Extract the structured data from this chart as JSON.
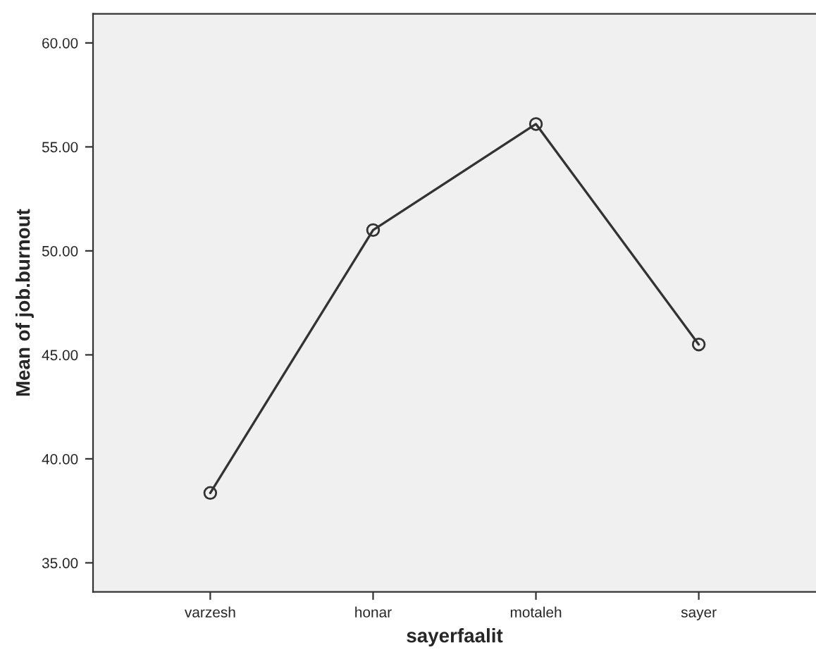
{
  "chart_data": {
    "type": "line",
    "xlabel": "sayerfaalit",
    "ylabel": "Mean of job.burnout",
    "categories": [
      "varzesh",
      "honar",
      "motaleh",
      "sayer"
    ],
    "series": [
      {
        "color": "#333333",
        "values": [
          38.36,
          51.0,
          56.1,
          45.5
        ]
      }
    ],
    "ylim": [
      33.6,
      61.4
    ],
    "yticks": [
      {
        "value": 35,
        "label": "35.00"
      },
      {
        "value": 40,
        "label": "40.00"
      },
      {
        "value": 45,
        "label": "45.00"
      },
      {
        "value": 50,
        "label": "50.00"
      },
      {
        "value": 55,
        "label": "55.00"
      },
      {
        "value": 60,
        "label": "60.00"
      }
    ],
    "marker": "circle",
    "line_style": "solid"
  }
}
